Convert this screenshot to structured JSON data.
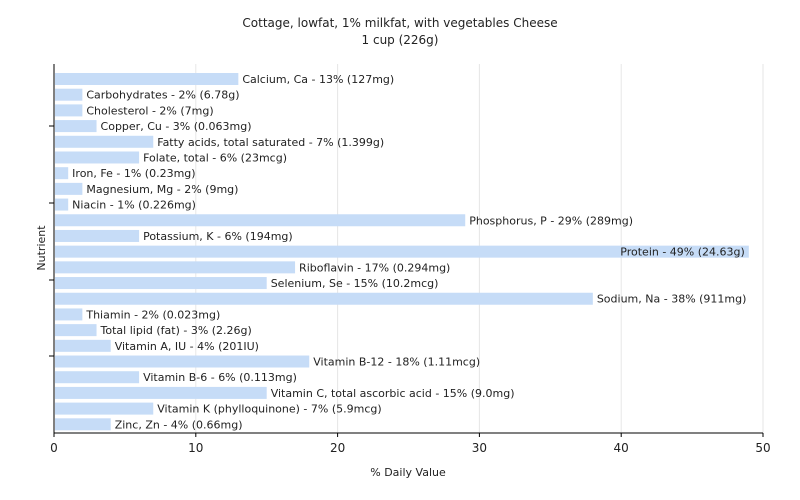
{
  "chart_data": {
    "type": "bar",
    "orientation": "horizontal",
    "title": "Cottage, lowfat, 1% milkfat, with vegetables Cheese",
    "subtitle": "1 cup (226g)",
    "xlabel": "% Daily Value",
    "ylabel": "Nutrient",
    "xlim": [
      0,
      50
    ],
    "xticks": [
      0,
      10,
      20,
      30,
      40,
      50
    ],
    "grid": true,
    "bar_color": "#c6dcf7",
    "bars": [
      {
        "name": "Calcium, Ca",
        "value": 13,
        "label": "Calcium, Ca - 13% (127mg)"
      },
      {
        "name": "Carbohydrates",
        "value": 2,
        "label": "Carbohydrates - 2% (6.78g)"
      },
      {
        "name": "Cholesterol",
        "value": 2,
        "label": "Cholesterol - 2% (7mg)"
      },
      {
        "name": "Copper, Cu",
        "value": 3,
        "label": "Copper, Cu - 3% (0.063mg)"
      },
      {
        "name": "Fatty acids, total saturated",
        "value": 7,
        "label": "Fatty acids, total saturated - 7% (1.399g)"
      },
      {
        "name": "Folate, total",
        "value": 6,
        "label": "Folate, total - 6% (23mcg)"
      },
      {
        "name": "Iron, Fe",
        "value": 1,
        "label": "Iron, Fe - 1% (0.23mg)"
      },
      {
        "name": "Magnesium, Mg",
        "value": 2,
        "label": "Magnesium, Mg - 2% (9mg)"
      },
      {
        "name": "Niacin",
        "value": 1,
        "label": "Niacin - 1% (0.226mg)"
      },
      {
        "name": "Phosphorus, P",
        "value": 29,
        "label": "Phosphorus, P - 29% (289mg)"
      },
      {
        "name": "Potassium, K",
        "value": 6,
        "label": "Potassium, K - 6% (194mg)"
      },
      {
        "name": "Protein",
        "value": 49,
        "label": "Protein - 49% (24.63g)"
      },
      {
        "name": "Riboflavin",
        "value": 17,
        "label": "Riboflavin - 17% (0.294mg)"
      },
      {
        "name": "Selenium, Se",
        "value": 15,
        "label": "Selenium, Se - 15% (10.2mcg)"
      },
      {
        "name": "Sodium, Na",
        "value": 38,
        "label": "Sodium, Na - 38% (911mg)"
      },
      {
        "name": "Thiamin",
        "value": 2,
        "label": "Thiamin - 2% (0.023mg)"
      },
      {
        "name": "Total lipid (fat)",
        "value": 3,
        "label": "Total lipid (fat) - 3% (2.26g)"
      },
      {
        "name": "Vitamin A, IU",
        "value": 4,
        "label": "Vitamin A, IU - 4% (201IU)"
      },
      {
        "name": "Vitamin B-12",
        "value": 18,
        "label": "Vitamin B-12 - 18% (1.11mcg)"
      },
      {
        "name": "Vitamin B-6",
        "value": 6,
        "label": "Vitamin B-6 - 6% (0.113mg)"
      },
      {
        "name": "Vitamin C, total ascorbic acid",
        "value": 15,
        "label": "Vitamin C, total ascorbic acid - 15% (9.0mg)"
      },
      {
        "name": "Vitamin K (phylloquinone)",
        "value": 7,
        "label": "Vitamin K (phylloquinone) - 7% (5.9mcg)"
      },
      {
        "name": "Zinc, Zn",
        "value": 4,
        "label": "Zinc, Zn - 4% (0.66mg)"
      }
    ]
  }
}
